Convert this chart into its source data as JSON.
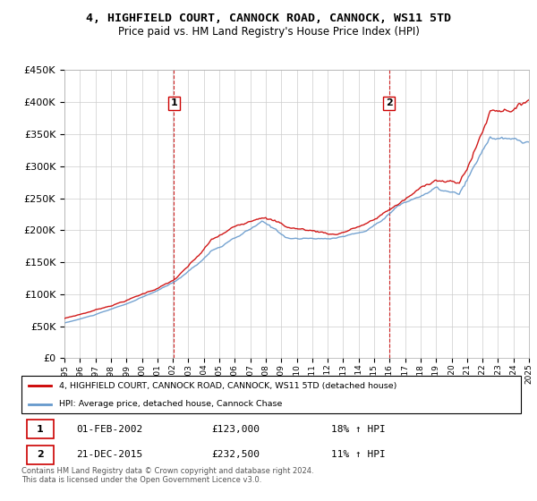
{
  "title": "4, HIGHFIELD COURT, CANNOCK ROAD, CANNOCK, WS11 5TD",
  "subtitle": "Price paid vs. HM Land Registry's House Price Index (HPI)",
  "legend_line1": "4, HIGHFIELD COURT, CANNOCK ROAD, CANNOCK, WS11 5TD (detached house)",
  "legend_line2": "HPI: Average price, detached house, Cannock Chase",
  "sale1_date": "01-FEB-2002",
  "sale1_price": "£123,000",
  "sale1_hpi": "18% ↑ HPI",
  "sale2_date": "21-DEC-2015",
  "sale2_price": "£232,500",
  "sale2_hpi": "11% ↑ HPI",
  "footer": "Contains HM Land Registry data © Crown copyright and database right 2024.\nThis data is licensed under the Open Government Licence v3.0.",
  "red_color": "#cc0000",
  "blue_color": "#6699cc",
  "dashed_red": "#cc0000",
  "ylim_min": 0,
  "ylim_max": 450000,
  "yticks": [
    0,
    50000,
    100000,
    150000,
    200000,
    250000,
    300000,
    350000,
    400000,
    450000
  ],
  "sale1_x": 2002.08,
  "sale1_y": 123000,
  "sale2_x": 2015.97,
  "sale2_y": 232500,
  "xmin": 1995,
  "xmax": 2025
}
